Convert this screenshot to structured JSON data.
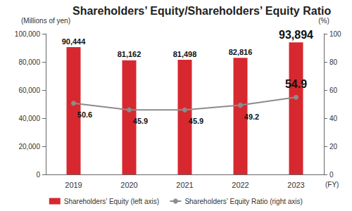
{
  "chart_data": {
    "type": "bar",
    "title": "Shareholders’ Equity/Shareholders’ Equity Ratio",
    "x_label": "(FY)",
    "y_label": "(Millions of yen)",
    "y2_label": "(%)",
    "categories": [
      "2019",
      "2020",
      "2021",
      "2022",
      "2023"
    ],
    "series": [
      {
        "name": "Shareholders’ Equity (left axis)",
        "type": "bar",
        "color": "#d7282f",
        "values": [
          90444,
          81162,
          81498,
          82816,
          93894
        ],
        "value_labels": [
          "90,444",
          "81,162",
          "81,498",
          "82,816",
          "93,894"
        ]
      },
      {
        "name": "Shareholders’ Equity Ratio (right axis)",
        "type": "line",
        "axis": "y2",
        "color": "#8c8c8c",
        "marker": "circle",
        "values": [
          50.6,
          45.9,
          45.9,
          49.2,
          54.9
        ]
      }
    ],
    "ylim": [
      0,
      100000
    ],
    "yticks": [
      0,
      {
        "value": 20000,
        "label": "20,000"
      },
      {
        "value": 40000,
        "label": "40,000"
      },
      {
        "value": 60000,
        "label": "60,000"
      },
      {
        "value": 80000,
        "label": "80,000"
      },
      {
        "value": 100000,
        "label": "100,000"
      }
    ],
    "y2lim": [
      0,
      100
    ],
    "y2ticks": [
      0,
      20,
      40,
      60,
      80,
      100
    ],
    "grid": false,
    "legend": "bottom",
    "data_labels": true
  }
}
